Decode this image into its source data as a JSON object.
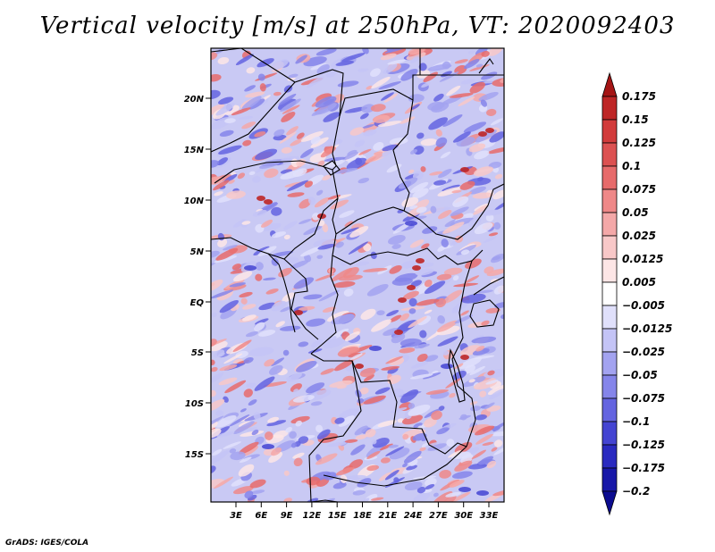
{
  "title": "Vertical velocity [m/s] at 250hPa, VT: 2020092403",
  "footer": "GrADS: IGES/COLA",
  "map": {
    "lat_labels": [
      "20N",
      "15N",
      "10N",
      "5N",
      "EQ",
      "5S",
      "10S",
      "15S"
    ],
    "lon_labels": [
      "3E",
      "6E",
      "9E",
      "12E",
      "15E",
      "18E",
      "21E",
      "24E",
      "27E",
      "30E",
      "33E"
    ]
  },
  "colorbar": {
    "labels": [
      "0.175",
      "0.15",
      "0.125",
      "0.1",
      "0.075",
      "0.05",
      "0.025",
      "0.0125",
      "0.005",
      "−0.005",
      "−0.0125",
      "−0.025",
      "−0.05",
      "−0.075",
      "−0.1",
      "−0.125",
      "−0.175",
      "−0.2"
    ],
    "colors": [
      "#a51515",
      "#be2626",
      "#d23b3b",
      "#dc5151",
      "#e76b6b",
      "#ef8888",
      "#f4a8a8",
      "#f8c8c8",
      "#fde6e6",
      "#ffffff",
      "#e0e0fb",
      "#c4c4f6",
      "#a3a3f0",
      "#8585ea",
      "#6464e0",
      "#4444d2",
      "#2a2ac0",
      "#1818a8",
      "#0c0c90"
    ]
  },
  "colors": {
    "positive": "#e06a6a",
    "negative": "#6a6ae8",
    "land_bg": "#c9c9f4"
  }
}
